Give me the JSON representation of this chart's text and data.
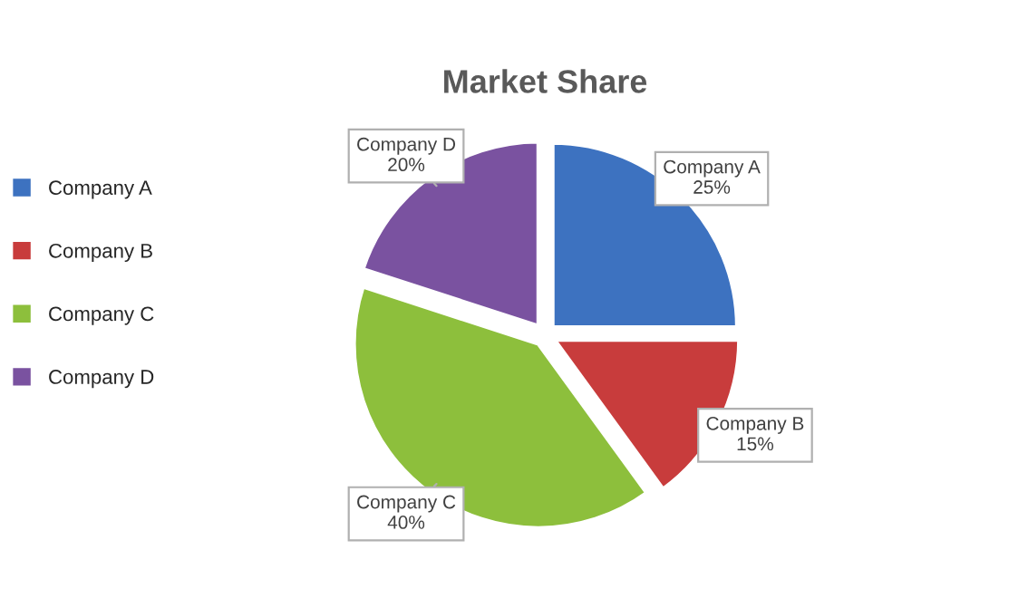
{
  "chart_data": {
    "type": "pie",
    "title": "Market Share",
    "categories": [
      "Company A",
      "Company B",
      "Company C",
      "Company D"
    ],
    "values": [
      25,
      15,
      40,
      20
    ],
    "colors": [
      "#3d72c0",
      "#c83c3c",
      "#8dbf3c",
      "#7a52a0"
    ],
    "value_labels": [
      "25%",
      "15%",
      "40%",
      "20%"
    ],
    "legend": "left"
  }
}
